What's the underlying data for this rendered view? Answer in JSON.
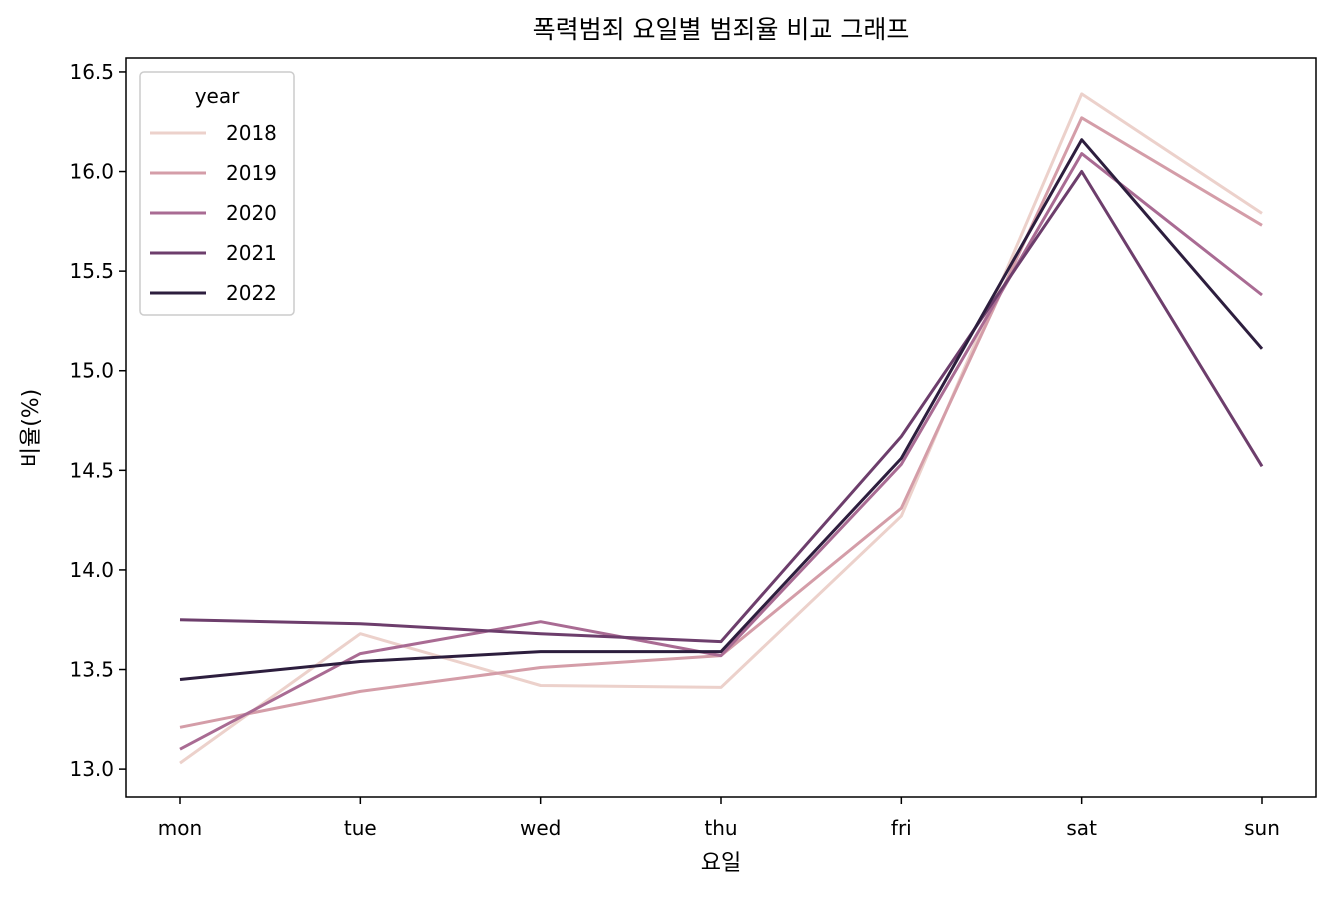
{
  "chart_data": {
    "type": "line",
    "title": "폭력범죄 요일별 범죄율 비교 그래프",
    "xlabel": "요일",
    "ylabel": "비율(%)",
    "categories": [
      "mon",
      "tue",
      "wed",
      "thu",
      "fri",
      "sat",
      "sun"
    ],
    "ylim": [
      12.86,
      16.57
    ],
    "yticks": [
      "13.0",
      "13.5",
      "14.0",
      "14.5",
      "15.0",
      "15.5",
      "16.0",
      "16.5"
    ],
    "grid": false,
    "legend": {
      "title": "year",
      "placement": "top-left"
    },
    "series": [
      {
        "name": "2018",
        "color": "#ecd1cb",
        "values": [
          13.03,
          13.68,
          13.42,
          13.41,
          14.27,
          16.39,
          15.79
        ]
      },
      {
        "name": "2019",
        "color": "#d49da8",
        "values": [
          13.21,
          13.39,
          13.51,
          13.57,
          14.31,
          16.27,
          15.73
        ]
      },
      {
        "name": "2020",
        "color": "#a96b93",
        "values": [
          13.1,
          13.58,
          13.74,
          13.57,
          14.53,
          16.09,
          15.38
        ]
      },
      {
        "name": "2021",
        "color": "#6d3e6c",
        "values": [
          13.75,
          13.73,
          13.68,
          13.64,
          14.67,
          16.0,
          14.52
        ]
      },
      {
        "name": "2022",
        "color": "#2d1e3e",
        "values": [
          13.45,
          13.54,
          13.59,
          13.59,
          14.56,
          16.16,
          15.11
        ]
      }
    ]
  }
}
